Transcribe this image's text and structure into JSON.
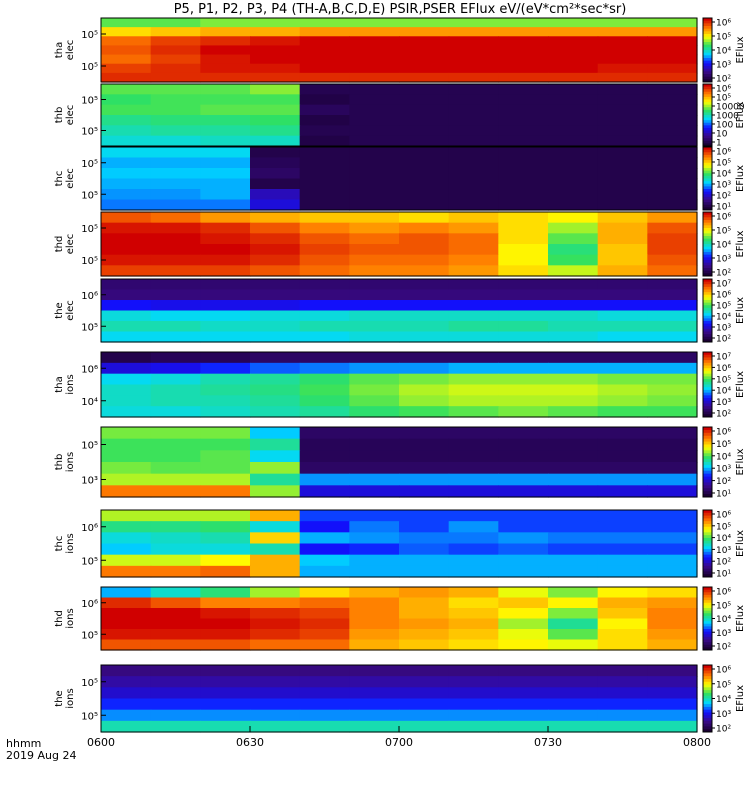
{
  "chart_data": {
    "type": "heatmap",
    "title": "P5, P1, P2, P3, P4 (TH-A,B,C,D,E) PSIR,PSER EFlux eV/(eV*cm²*sec*sr)",
    "x_axis": {
      "label_line1": "hhmm",
      "label_line2": "2019 Aug 24",
      "ticks": [
        "0600",
        "0630",
        "0700",
        "0730",
        "0800"
      ],
      "tick_values_min": [
        0,
        30,
        60,
        90,
        120
      ],
      "range_min": [
        0,
        120
      ]
    },
    "y_axis_scale": "log",
    "colorbar_label": "EFlux",
    "colormap": [
      "#1a0033",
      "#3a0a8a",
      "#1010ff",
      "#00d8ff",
      "#30e060",
      "#ffff00",
      "#ff7a00",
      "#d00000"
    ],
    "panels": [
      {
        "id": "tha_elec",
        "ylabel": [
          "tha",
          "elec"
        ],
        "yticks": [
          "10⁵",
          "10⁵"
        ],
        "cbar_ticks": [
          "10⁶",
          "10⁵",
          "10⁴",
          "10³",
          "10²"
        ],
        "cbar_log": [
          2,
          6
        ],
        "rows": [
          [
            4.4,
            4.4,
            4.5,
            4.5,
            4.5,
            4.5,
            4.5,
            4.5,
            4.5,
            4.5,
            4.5,
            4.5
          ],
          [
            5.0,
            5.1,
            5.2,
            5.2,
            5.3,
            5.3,
            5.3,
            5.3,
            5.3,
            5.3,
            5.3,
            5.3
          ],
          [
            5.5,
            5.7,
            5.8,
            5.9,
            6.0,
            6.0,
            6.1,
            6.1,
            6.1,
            6.0,
            6.0,
            6.0
          ],
          [
            5.6,
            5.8,
            6.0,
            6.1,
            6.2,
            6.2,
            6.3,
            6.3,
            6.3,
            6.2,
            6.2,
            6.1
          ],
          [
            5.5,
            5.7,
            5.9,
            6.0,
            6.1,
            6.1,
            6.2,
            6.2,
            6.2,
            6.1,
            6.1,
            6.0
          ],
          [
            5.7,
            5.8,
            5.9,
            5.9,
            6.0,
            6.0,
            6.0,
            6.0,
            6.0,
            6.0,
            5.9,
            5.9
          ],
          [
            5.8,
            5.8,
            5.8,
            5.8,
            5.8,
            5.8,
            5.8,
            5.8,
            5.8,
            5.8,
            5.8,
            5.8
          ]
        ]
      },
      {
        "id": "thb_elec",
        "ylabel": [
          "thb",
          "elec"
        ],
        "yticks": [
          "10⁵",
          "10⁵"
        ],
        "cbar_ticks": [
          "10⁶",
          "10⁵",
          "10000",
          "1000",
          "100",
          "10",
          "1"
        ],
        "cbar_log": [
          0,
          6
        ],
        "rows": [
          [
            3.6,
            3.6,
            3.6,
            3.8,
            0.3,
            0.3,
            0.3,
            0.3,
            0.3,
            0.3,
            0.3,
            0.3
          ],
          [
            3.4,
            3.5,
            3.5,
            3.5,
            0.2,
            0.3,
            0.3,
            0.3,
            0.3,
            0.3,
            0.3,
            0.3
          ],
          [
            3.5,
            3.5,
            3.6,
            3.6,
            0.4,
            0.3,
            0.3,
            0.3,
            0.3,
            0.3,
            0.3,
            0.3
          ],
          [
            3.2,
            3.3,
            3.3,
            3.4,
            0.2,
            0.3,
            0.3,
            0.3,
            0.3,
            0.3,
            0.3,
            0.3
          ],
          [
            3.0,
            3.1,
            3.1,
            3.2,
            0.3,
            0.3,
            0.3,
            0.3,
            0.3,
            0.3,
            0.3,
            0.3
          ],
          [
            2.8,
            2.8,
            2.9,
            2.9,
            0.2,
            0.3,
            0.3,
            0.3,
            0.3,
            0.3,
            0.3,
            0.3
          ]
        ]
      },
      {
        "id": "thc_elec",
        "ylabel": [
          "thc",
          "elec"
        ],
        "yticks": [
          "10⁵",
          "10⁵"
        ],
        "cbar_ticks": [
          "10⁶",
          "10⁵",
          "10⁴",
          "10³",
          "10²",
          "10¹"
        ],
        "cbar_log": [
          1,
          6
        ],
        "rows": [
          [
            3.2,
            3.2,
            3.2,
            1.2,
            1.2,
            1.2,
            1.2,
            1.2,
            1.2,
            1.2,
            1.2,
            1.2
          ],
          [
            3.0,
            3.0,
            3.0,
            1.3,
            1.2,
            1.2,
            1.2,
            1.2,
            1.2,
            1.2,
            1.2,
            1.2
          ],
          [
            3.1,
            3.1,
            3.1,
            1.4,
            1.2,
            1.2,
            1.2,
            1.2,
            1.2,
            1.2,
            1.2,
            1.2
          ],
          [
            3.0,
            3.0,
            3.0,
            1.2,
            1.2,
            1.2,
            1.2,
            1.2,
            1.2,
            1.2,
            1.2,
            1.2
          ],
          [
            2.9,
            2.9,
            3.0,
            2.0,
            1.2,
            1.2,
            1.2,
            1.2,
            1.2,
            1.2,
            1.2,
            1.2
          ],
          [
            2.8,
            2.8,
            2.8,
            2.2,
            1.2,
            1.2,
            1.2,
            1.2,
            1.2,
            1.2,
            1.2,
            1.2
          ]
        ]
      },
      {
        "id": "thd_elec",
        "ylabel": [
          "thd",
          "elec"
        ],
        "yticks": [
          "10⁵",
          "10⁵"
        ],
        "cbar_ticks": [
          "10⁶",
          "10⁵",
          "10⁴",
          "10³",
          "10²"
        ],
        "cbar_log": [
          2,
          6
        ],
        "rows": [
          [
            5.6,
            5.5,
            5.3,
            5.2,
            5.1,
            5.1,
            5.0,
            5.1,
            5.0,
            4.9,
            5.1,
            5.3
          ],
          [
            5.9,
            5.9,
            5.8,
            5.6,
            5.4,
            5.3,
            5.4,
            5.3,
            5.0,
            4.6,
            5.2,
            5.6
          ],
          [
            6.0,
            6.0,
            5.9,
            5.8,
            5.6,
            5.5,
            5.6,
            5.5,
            5.0,
            4.4,
            5.2,
            5.7
          ],
          [
            6.0,
            6.0,
            6.0,
            5.9,
            5.7,
            5.6,
            5.6,
            5.5,
            4.9,
            4.2,
            5.1,
            5.7
          ],
          [
            5.9,
            5.9,
            5.9,
            5.8,
            5.6,
            5.5,
            5.5,
            5.4,
            4.9,
            4.3,
            5.1,
            5.6
          ],
          [
            5.7,
            5.7,
            5.7,
            5.6,
            5.5,
            5.4,
            5.4,
            5.3,
            5.0,
            4.7,
            5.2,
            5.5
          ]
        ]
      },
      {
        "id": "the_elec",
        "ylabel": [
          "the",
          "elec"
        ],
        "yticks": [
          "10⁶",
          "10⁵"
        ],
        "cbar_ticks": [
          "10⁷",
          "10⁶",
          "10⁵",
          "10⁴",
          "10³",
          "10²"
        ],
        "cbar_log": [
          2,
          7
        ],
        "rows": [
          [
            2.5,
            2.5,
            2.5,
            2.5,
            2.5,
            2.5,
            2.5,
            2.5,
            2.5,
            2.5,
            2.5,
            2.5
          ],
          [
            2.6,
            2.6,
            2.6,
            2.6,
            2.6,
            2.6,
            2.6,
            2.6,
            2.6,
            2.6,
            2.6,
            2.6
          ],
          [
            3.4,
            3.3,
            3.3,
            3.3,
            3.4,
            3.4,
            3.4,
            3.4,
            3.4,
            3.4,
            3.4,
            3.4
          ],
          [
            4.3,
            4.2,
            4.2,
            4.3,
            4.3,
            4.4,
            4.4,
            4.4,
            4.4,
            4.4,
            4.3,
            4.3
          ],
          [
            4.5,
            4.5,
            4.4,
            4.4,
            4.5,
            4.5,
            4.5,
            4.6,
            4.6,
            4.5,
            4.5,
            4.5
          ],
          [
            4.2,
            4.2,
            4.2,
            4.2,
            4.2,
            4.3,
            4.3,
            4.3,
            4.3,
            4.3,
            4.2,
            4.2
          ]
        ]
      },
      {
        "id": "tha_ions",
        "ylabel": [
          "tha",
          "ions"
        ],
        "yticks": [
          "10⁶",
          "10⁴"
        ],
        "cbar_ticks": [
          "10⁷",
          "10⁶",
          "10⁵",
          "10⁴",
          "10³",
          "10²"
        ],
        "cbar_log": [
          2,
          7
        ],
        "rows": [
          [
            2.2,
            2.3,
            2.3,
            2.4,
            2.4,
            2.4,
            2.4,
            2.4,
            2.4,
            2.4,
            2.4,
            2.4
          ],
          [
            3.2,
            3.3,
            3.5,
            3.7,
            3.8,
            3.9,
            3.9,
            4.0,
            4.0,
            4.0,
            4.0,
            4.0
          ],
          [
            4.2,
            4.3,
            4.5,
            4.6,
            4.8,
            5.0,
            5.1,
            5.2,
            5.2,
            5.2,
            5.1,
            5.1
          ],
          [
            4.4,
            4.5,
            4.6,
            4.7,
            4.9,
            5.1,
            5.3,
            5.4,
            5.4,
            5.4,
            5.3,
            5.2
          ],
          [
            4.4,
            4.5,
            4.5,
            4.6,
            4.8,
            5.0,
            5.2,
            5.3,
            5.3,
            5.3,
            5.2,
            5.1
          ],
          [
            4.3,
            4.3,
            4.4,
            4.5,
            4.6,
            4.8,
            4.9,
            5.0,
            5.1,
            5.0,
            4.9,
            4.9
          ]
        ]
      },
      {
        "id": "thb_ions",
        "ylabel": [
          "thb",
          "ions"
        ],
        "yticks": [
          "10⁵",
          "10³"
        ],
        "cbar_ticks": [
          "10⁶",
          "10⁵",
          "10⁴",
          "10³",
          "10²",
          "10¹"
        ],
        "cbar_log": [
          1,
          6
        ],
        "rows": [
          [
            4.1,
            4.1,
            4.1,
            3.1,
            1.4,
            1.4,
            1.4,
            1.4,
            1.4,
            1.4,
            1.4,
            1.4
          ],
          [
            3.9,
            3.9,
            3.9,
            3.6,
            1.3,
            1.3,
            1.3,
            1.3,
            1.3,
            1.3,
            1.3,
            1.3
          ],
          [
            3.9,
            3.9,
            4.0,
            3.2,
            1.3,
            1.3,
            1.3,
            1.3,
            1.3,
            1.3,
            1.3,
            1.3
          ],
          [
            4.1,
            4.0,
            4.0,
            4.2,
            1.4,
            1.4,
            1.4,
            1.4,
            1.4,
            1.4,
            1.4,
            1.4
          ],
          [
            4.3,
            4.3,
            4.3,
            3.6,
            2.9,
            2.9,
            2.9,
            2.9,
            2.9,
            2.9,
            2.9,
            2.9
          ],
          [
            5.3,
            5.3,
            5.3,
            4.2,
            2.2,
            2.2,
            2.2,
            2.2,
            2.2,
            2.2,
            2.2,
            2.2
          ]
        ]
      },
      {
        "id": "thc_ions",
        "ylabel": [
          "thc",
          "ions"
        ],
        "yticks": [
          "10⁶",
          "10⁵"
        ],
        "cbar_ticks": [
          "10⁶",
          "10⁵",
          "10⁴",
          "10³",
          "10²",
          "10¹"
        ],
        "cbar_log": [
          1,
          6
        ],
        "rows": [
          [
            4.3,
            4.3,
            4.3,
            5.0,
            2.6,
            2.6,
            2.6,
            2.6,
            2.6,
            2.6,
            2.6,
            2.6
          ],
          [
            3.7,
            3.7,
            3.8,
            3.3,
            2.4,
            2.8,
            2.6,
            2.9,
            2.6,
            2.6,
            2.6,
            2.6
          ],
          [
            3.3,
            3.4,
            3.5,
            4.8,
            3.0,
            2.9,
            2.8,
            2.8,
            2.9,
            2.8,
            2.8,
            2.8
          ],
          [
            3.1,
            3.3,
            3.3,
            3.5,
            2.4,
            2.5,
            2.7,
            2.6,
            2.7,
            2.6,
            2.6,
            2.6
          ],
          [
            4.4,
            4.4,
            4.6,
            5.0,
            3.1,
            3.0,
            3.0,
            3.0,
            3.0,
            3.0,
            3.0,
            3.0
          ],
          [
            5.3,
            5.3,
            5.4,
            5.0,
            3.0,
            3.0,
            3.0,
            3.0,
            3.0,
            3.0,
            3.0,
            3.0
          ]
        ]
      },
      {
        "id": "thd_ions",
        "ylabel": [
          "thd",
          "ions"
        ],
        "yticks": [
          "10⁶",
          "10⁵"
        ],
        "cbar_ticks": [
          "10⁶",
          "10⁵",
          "10⁴",
          "10³",
          "10²"
        ],
        "cbar_log": [
          2,
          6
        ],
        "rows": [
          [
            3.6,
            3.9,
            4.2,
            4.6,
            5.0,
            5.2,
            5.3,
            5.2,
            4.8,
            4.5,
            4.9,
            5.0
          ],
          [
            5.8,
            5.6,
            5.4,
            5.4,
            5.5,
            5.4,
            5.2,
            5.0,
            5.1,
            4.9,
            5.2,
            5.3
          ],
          [
            6.0,
            6.0,
            5.9,
            5.8,
            5.7,
            5.4,
            5.2,
            5.1,
            4.9,
            4.5,
            5.1,
            5.4
          ],
          [
            6.0,
            6.0,
            6.0,
            5.9,
            5.8,
            5.4,
            5.3,
            5.2,
            4.6,
            4.1,
            4.9,
            5.4
          ],
          [
            5.9,
            5.9,
            5.9,
            5.8,
            5.7,
            5.3,
            5.2,
            5.1,
            4.8,
            4.4,
            5.0,
            5.3
          ],
          [
            5.6,
            5.6,
            5.6,
            5.5,
            5.5,
            5.2,
            5.1,
            5.0,
            4.9,
            4.8,
            5.0,
            5.2
          ]
        ]
      },
      {
        "id": "the_ions",
        "ylabel": [
          "the",
          "ions"
        ],
        "yticks": [
          "10⁵",
          "10⁵"
        ],
        "cbar_ticks": [
          "10⁶",
          "10⁵",
          "10⁴",
          "10³",
          "10²"
        ],
        "cbar_log": [
          2,
          6
        ],
        "rows": [
          [
            2.5,
            2.5,
            2.5,
            2.5,
            2.5,
            2.5,
            2.5,
            2.5,
            2.5,
            2.5,
            2.5,
            2.5
          ],
          [
            2.7,
            2.7,
            2.7,
            2.7,
            2.7,
            2.7,
            2.7,
            2.7,
            2.7,
            2.7,
            2.7,
            2.7
          ],
          [
            2.9,
            2.9,
            2.9,
            2.9,
            2.9,
            2.9,
            2.9,
            2.9,
            2.9,
            2.9,
            2.9,
            2.9
          ],
          [
            3.2,
            3.2,
            3.2,
            3.2,
            3.2,
            3.2,
            3.2,
            3.2,
            3.2,
            3.2,
            3.2,
            3.2
          ],
          [
            3.5,
            3.5,
            3.5,
            3.5,
            3.5,
            3.5,
            3.5,
            3.5,
            3.5,
            3.5,
            3.5,
            3.5
          ],
          [
            4.0,
            4.0,
            4.0,
            4.0,
            4.0,
            4.0,
            4.0,
            4.0,
            4.0,
            4.0,
            4.0,
            4.0
          ]
        ]
      }
    ]
  }
}
